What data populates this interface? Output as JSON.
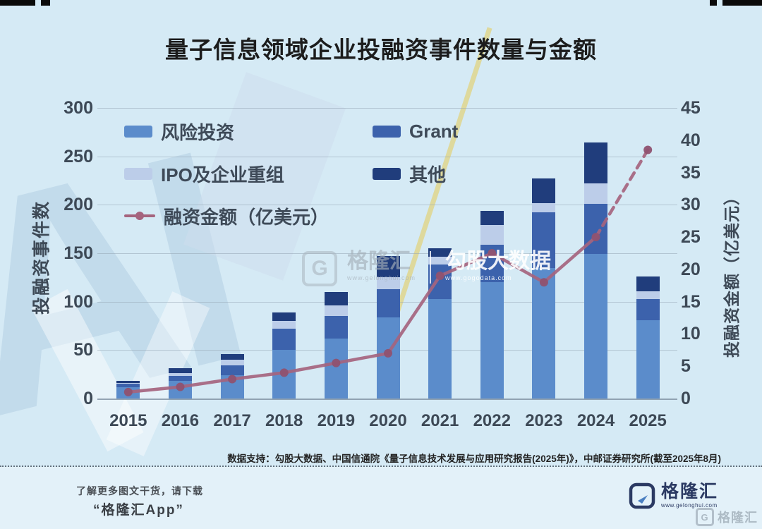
{
  "meta": {
    "title": "量子信息领域企业投融资事件数量与金额"
  },
  "chart_data": {
    "type": "bar",
    "subtype": "stacked-bars-with-line",
    "title": "量子信息领域企业投融资事件数量与金额",
    "categories": [
      "2015",
      "2016",
      "2017",
      "2018",
      "2019",
      "2020",
      "2021",
      "2022",
      "2023",
      "2024",
      "2025"
    ],
    "series": [
      {
        "name": "风险投资",
        "color": "#5b8ccb",
        "values": [
          12,
          18,
          24,
          50,
          62,
          84,
          103,
          120,
          135,
          149,
          81
        ]
      },
      {
        "name": "Grant",
        "color": "#3c62ac",
        "values": [
          3,
          5,
          10,
          22,
          23,
          29,
          35,
          39,
          57,
          52,
          22
        ]
      },
      {
        "name": "IPO及企业重组",
        "color": "#bccde9",
        "values": [
          1,
          3,
          6,
          8,
          11,
          12,
          8,
          20,
          10,
          21,
          8
        ]
      },
      {
        "name": "其他",
        "color": "#203d7c",
        "values": [
          2,
          5,
          6,
          9,
          14,
          22,
          9,
          15,
          25,
          42,
          15
        ]
      }
    ],
    "totals": [
      18,
      31,
      46,
      89,
      110,
      147,
      155,
      194,
      227,
      264,
      126
    ],
    "line": {
      "name": "融资金额（亿美元）",
      "color": "#a5647e",
      "dot_color": "#8f5270",
      "values": [
        1,
        1.8,
        3,
        4,
        5.5,
        7,
        19,
        22.5,
        18,
        25,
        38.5
      ],
      "dashed_from_index": 9
    },
    "left_axis": {
      "label": "投融资事件数",
      "min": 0,
      "max": 300,
      "step": 50,
      "ticks": [
        "0",
        "50",
        "100",
        "150",
        "200",
        "250",
        "300"
      ]
    },
    "right_axis": {
      "label": "投融资金额（亿美元）",
      "min": 0,
      "max": 45,
      "step": 5,
      "ticks": [
        "0",
        "5",
        "10",
        "15",
        "20",
        "25",
        "30",
        "35",
        "40",
        "45"
      ]
    },
    "legend": [
      {
        "label": "风险投资",
        "color": "#5b8ccb",
        "kind": "box",
        "col": 1,
        "row": 0
      },
      {
        "label": "IPO及企业重组",
        "color": "#bccde9",
        "kind": "box",
        "col": 1,
        "row": 1
      },
      {
        "label": "融资金额（亿美元）",
        "color": "#a5647e",
        "kind": "line",
        "col": 1,
        "row": 2
      },
      {
        "label": "Grant",
        "color": "#3c62ac",
        "kind": "box",
        "col": 2,
        "row": 0
      },
      {
        "label": "其他",
        "color": "#203d7c",
        "kind": "box",
        "col": 2,
        "row": 1
      }
    ],
    "grid": true,
    "legend_position": "top-left-inside"
  },
  "watermark": {
    "g": "G",
    "brand": "格隆汇",
    "brand_url": "www.gelonghui.com",
    "partner": "勾股大数据",
    "partner_url": "www.gogodata.com",
    "big_letters": "AI"
  },
  "footer": {
    "source": "数据支持：勾股大数据、中国信通院《量子信息技术发展与应用研究报告(2025年)》，中邮证券研究所(截至2025年8月)"
  },
  "bottom": {
    "promo_line1": "了解更多图文干货，请下载",
    "promo_line2": "“格隆汇App”",
    "logo_g": "G",
    "logo_name": "格隆汇",
    "logo_url": "www.gelonghui.com",
    "corner_watermark": "格隆汇"
  },
  "colors": {
    "background": "#d5eaf5",
    "bottom_background": "#e3f1f9",
    "axis_text": "#3d4956",
    "title_text": "#1c1c1c"
  }
}
